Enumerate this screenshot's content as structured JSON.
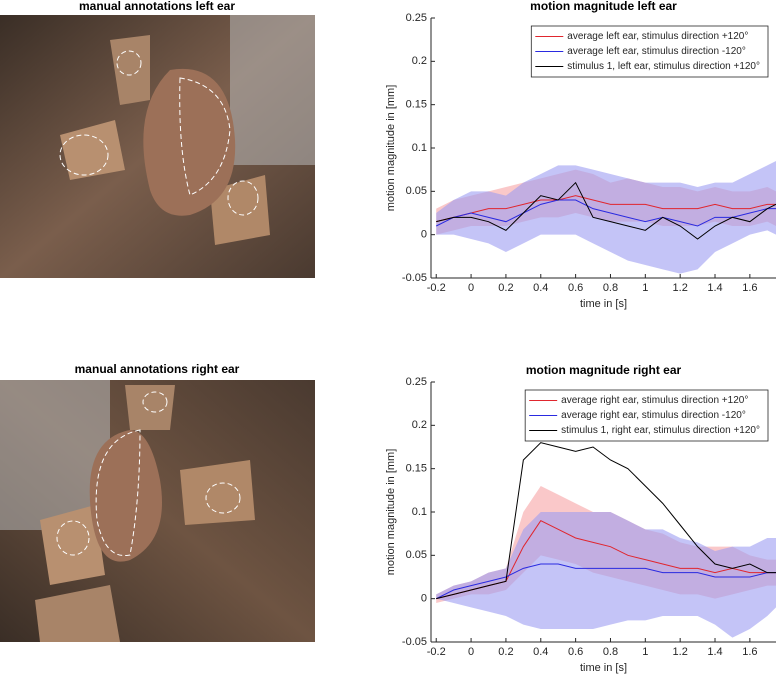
{
  "images": [
    {
      "title": "manual annotations left ear"
    },
    {
      "title": "manual annotations right ear"
    }
  ],
  "chart_data": [
    {
      "type": "line",
      "title": "motion magnitude left ear",
      "xlabel": "time in [s]",
      "ylabel": "motion magnitude in [mm]",
      "x": [
        -0.2,
        -0.1,
        0,
        0.1,
        0.2,
        0.3,
        0.4,
        0.5,
        0.6,
        0.7,
        0.8,
        0.9,
        1.0,
        1.1,
        1.2,
        1.3,
        1.4,
        1.5,
        1.6,
        1.7,
        1.75
      ],
      "xlim": [
        -0.23,
        1.75
      ],
      "ylim": [
        -0.05,
        0.25
      ],
      "xticks": [
        -0.2,
        0,
        0.2,
        0.4,
        0.6,
        0.8,
        1,
        1.2,
        1.4,
        1.6
      ],
      "yticks": [
        -0.05,
        0,
        0.05,
        0.1,
        0.15,
        0.2,
        0.25
      ],
      "legend": "upper right",
      "series": [
        {
          "name": "average left ear, stimulus direction +120°",
          "color": "#e0262e",
          "band_color": "#f7a3a5",
          "values": [
            0.015,
            0.02,
            0.025,
            0.03,
            0.03,
            0.035,
            0.04,
            0.04,
            0.045,
            0.04,
            0.035,
            0.035,
            0.035,
            0.03,
            0.03,
            0.03,
            0.035,
            0.03,
            0.03,
            0.035,
            0.035
          ],
          "band_low": [
            0,
            0.005,
            0.01,
            0.01,
            0.01,
            0.015,
            0.02,
            0.02,
            0.025,
            0.02,
            0.015,
            0.015,
            0.015,
            0.01,
            0.01,
            0.01,
            0.015,
            0.01,
            0.01,
            0.015,
            0.01
          ],
          "band_high": [
            0.03,
            0.04,
            0.045,
            0.05,
            0.055,
            0.06,
            0.065,
            0.07,
            0.075,
            0.07,
            0.06,
            0.065,
            0.06,
            0.055,
            0.055,
            0.05,
            0.055,
            0.05,
            0.05,
            0.055,
            0.05
          ]
        },
        {
          "name": "average left ear, stimulus direction -120°",
          "color": "#2a2ae0",
          "band_color": "#9c9cf2",
          "values": [
            0.01,
            0.02,
            0.025,
            0.02,
            0.015,
            0.025,
            0.035,
            0.04,
            0.04,
            0.03,
            0.025,
            0.02,
            0.015,
            0.02,
            0.015,
            0.01,
            0.02,
            0.02,
            0.025,
            0.03,
            0.03
          ],
          "band_low": [
            0,
            0,
            -0.005,
            -0.01,
            -0.02,
            -0.01,
            0,
            0,
            0,
            -0.01,
            -0.02,
            -0.03,
            -0.035,
            -0.04,
            -0.045,
            -0.04,
            -0.02,
            -0.01,
            0,
            0.005,
            0
          ],
          "band_high": [
            0.025,
            0.04,
            0.05,
            0.05,
            0.045,
            0.06,
            0.07,
            0.08,
            0.08,
            0.075,
            0.07,
            0.065,
            0.06,
            0.06,
            0.06,
            0.055,
            0.06,
            0.06,
            0.07,
            0.08,
            0.085
          ]
        },
        {
          "name": "stimulus 1, left ear, stimulus direction +120°",
          "color": "#000000",
          "values": [
            0.015,
            0.02,
            0.02,
            0.015,
            0.005,
            0.025,
            0.045,
            0.04,
            0.06,
            0.02,
            0.015,
            0.01,
            0.005,
            0.02,
            0.01,
            -0.005,
            0.01,
            0.02,
            0.015,
            0.03,
            0.035
          ]
        }
      ]
    },
    {
      "type": "line",
      "title": "motion magnitude right ear",
      "xlabel": "time in [s]",
      "ylabel": "motion magnitude in [mm]",
      "x": [
        -0.2,
        -0.1,
        0,
        0.1,
        0.2,
        0.3,
        0.4,
        0.5,
        0.6,
        0.7,
        0.8,
        0.9,
        1.0,
        1.1,
        1.2,
        1.3,
        1.4,
        1.5,
        1.6,
        1.7,
        1.75
      ],
      "xlim": [
        -0.23,
        1.75
      ],
      "ylim": [
        -0.05,
        0.25
      ],
      "xticks": [
        -0.2,
        0,
        0.2,
        0.4,
        0.6,
        0.8,
        1,
        1.2,
        1.4,
        1.6
      ],
      "yticks": [
        -0.05,
        0,
        0.05,
        0.1,
        0.15,
        0.2,
        0.25
      ],
      "legend": "upper right",
      "series": [
        {
          "name": "average right ear, stimulus direction +120°",
          "color": "#e0262e",
          "band_color": "#f7a3a5",
          "values": [
            0,
            0.005,
            0.01,
            0.015,
            0.02,
            0.06,
            0.09,
            0.08,
            0.07,
            0.065,
            0.06,
            0.05,
            0.045,
            0.04,
            0.035,
            0.035,
            0.03,
            0.035,
            0.03,
            0.03,
            0.03
          ],
          "band_low": [
            -0.005,
            0,
            0.005,
            0.005,
            0.01,
            0.03,
            0.05,
            0.045,
            0.04,
            0.03,
            0.025,
            0.02,
            0.015,
            0.01,
            0.005,
            0.005,
            0,
            0.005,
            0.01,
            0.015,
            0.015
          ],
          "band_high": [
            0.005,
            0.015,
            0.02,
            0.03,
            0.035,
            0.1,
            0.13,
            0.12,
            0.11,
            0.1,
            0.1,
            0.09,
            0.08,
            0.075,
            0.065,
            0.06,
            0.06,
            0.06,
            0.05,
            0.045,
            0.045
          ]
        },
        {
          "name": "average right ear, stimulus direction -120°",
          "color": "#2a2ae0",
          "band_color": "#9c9cf2",
          "values": [
            0,
            0.01,
            0.015,
            0.02,
            0.025,
            0.035,
            0.04,
            0.04,
            0.035,
            0.035,
            0.035,
            0.035,
            0.035,
            0.03,
            0.03,
            0.03,
            0.025,
            0.025,
            0.025,
            0.03,
            0.03
          ],
          "band_low": [
            0,
            -0.005,
            -0.01,
            -0.015,
            -0.02,
            -0.03,
            -0.035,
            -0.035,
            -0.035,
            -0.035,
            -0.03,
            -0.025,
            -0.025,
            -0.02,
            -0.02,
            -0.02,
            -0.03,
            -0.045,
            -0.035,
            -0.02,
            -0.01
          ],
          "band_high": [
            0.005,
            0.015,
            0.02,
            0.03,
            0.035,
            0.08,
            0.1,
            0.1,
            0.1,
            0.1,
            0.1,
            0.09,
            0.08,
            0.08,
            0.07,
            0.065,
            0.055,
            0.06,
            0.06,
            0.07,
            0.07
          ]
        },
        {
          "name": "stimulus 1, right ear, stimulus direction +120°",
          "color": "#000000",
          "values": [
            0,
            0.005,
            0.01,
            0.015,
            0.02,
            0.16,
            0.18,
            0.175,
            0.17,
            0.175,
            0.16,
            0.15,
            0.13,
            0.11,
            0.085,
            0.06,
            0.04,
            0.035,
            0.04,
            0.03,
            0.03
          ]
        }
      ]
    }
  ]
}
